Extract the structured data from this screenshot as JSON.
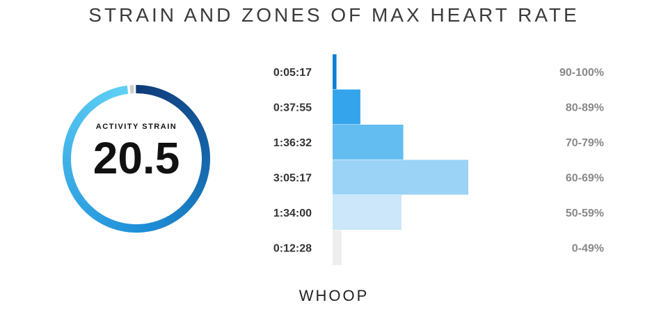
{
  "header": {
    "title": "STRAIN AND ZONES OF MAX HEART RATE"
  },
  "gauge": {
    "label": "ACTIVITY STRAIN",
    "value": "20.5",
    "fill_fraction": 0.98,
    "colors": {
      "start": "#5fd0f5",
      "mid": "#1e8fd8",
      "end": "#0f3a78",
      "empty": "#cfcfcf"
    }
  },
  "chart_data": {
    "type": "bar",
    "orientation": "horizontal",
    "categories": [
      "90-100%",
      "80-89%",
      "70-79%",
      "60-69%",
      "50-59%",
      "0-49%"
    ],
    "duration_labels": [
      "0:05:17",
      "0:37:55",
      "1:36:32",
      "3:05:17",
      "1:34:00",
      "0:12:28"
    ],
    "values": [
      317,
      2275,
      5792,
      11117,
      5640,
      748
    ],
    "value_unit": "seconds",
    "bar_colors": [
      "#0f7fd6",
      "#34a4ec",
      "#64bdf1",
      "#9bd3f6",
      "#cbe7f9",
      "#eeeeee"
    ],
    "title": "STRAIN AND ZONES OF MAX HEART RATE"
  },
  "brand": {
    "name": "WHOOP"
  }
}
